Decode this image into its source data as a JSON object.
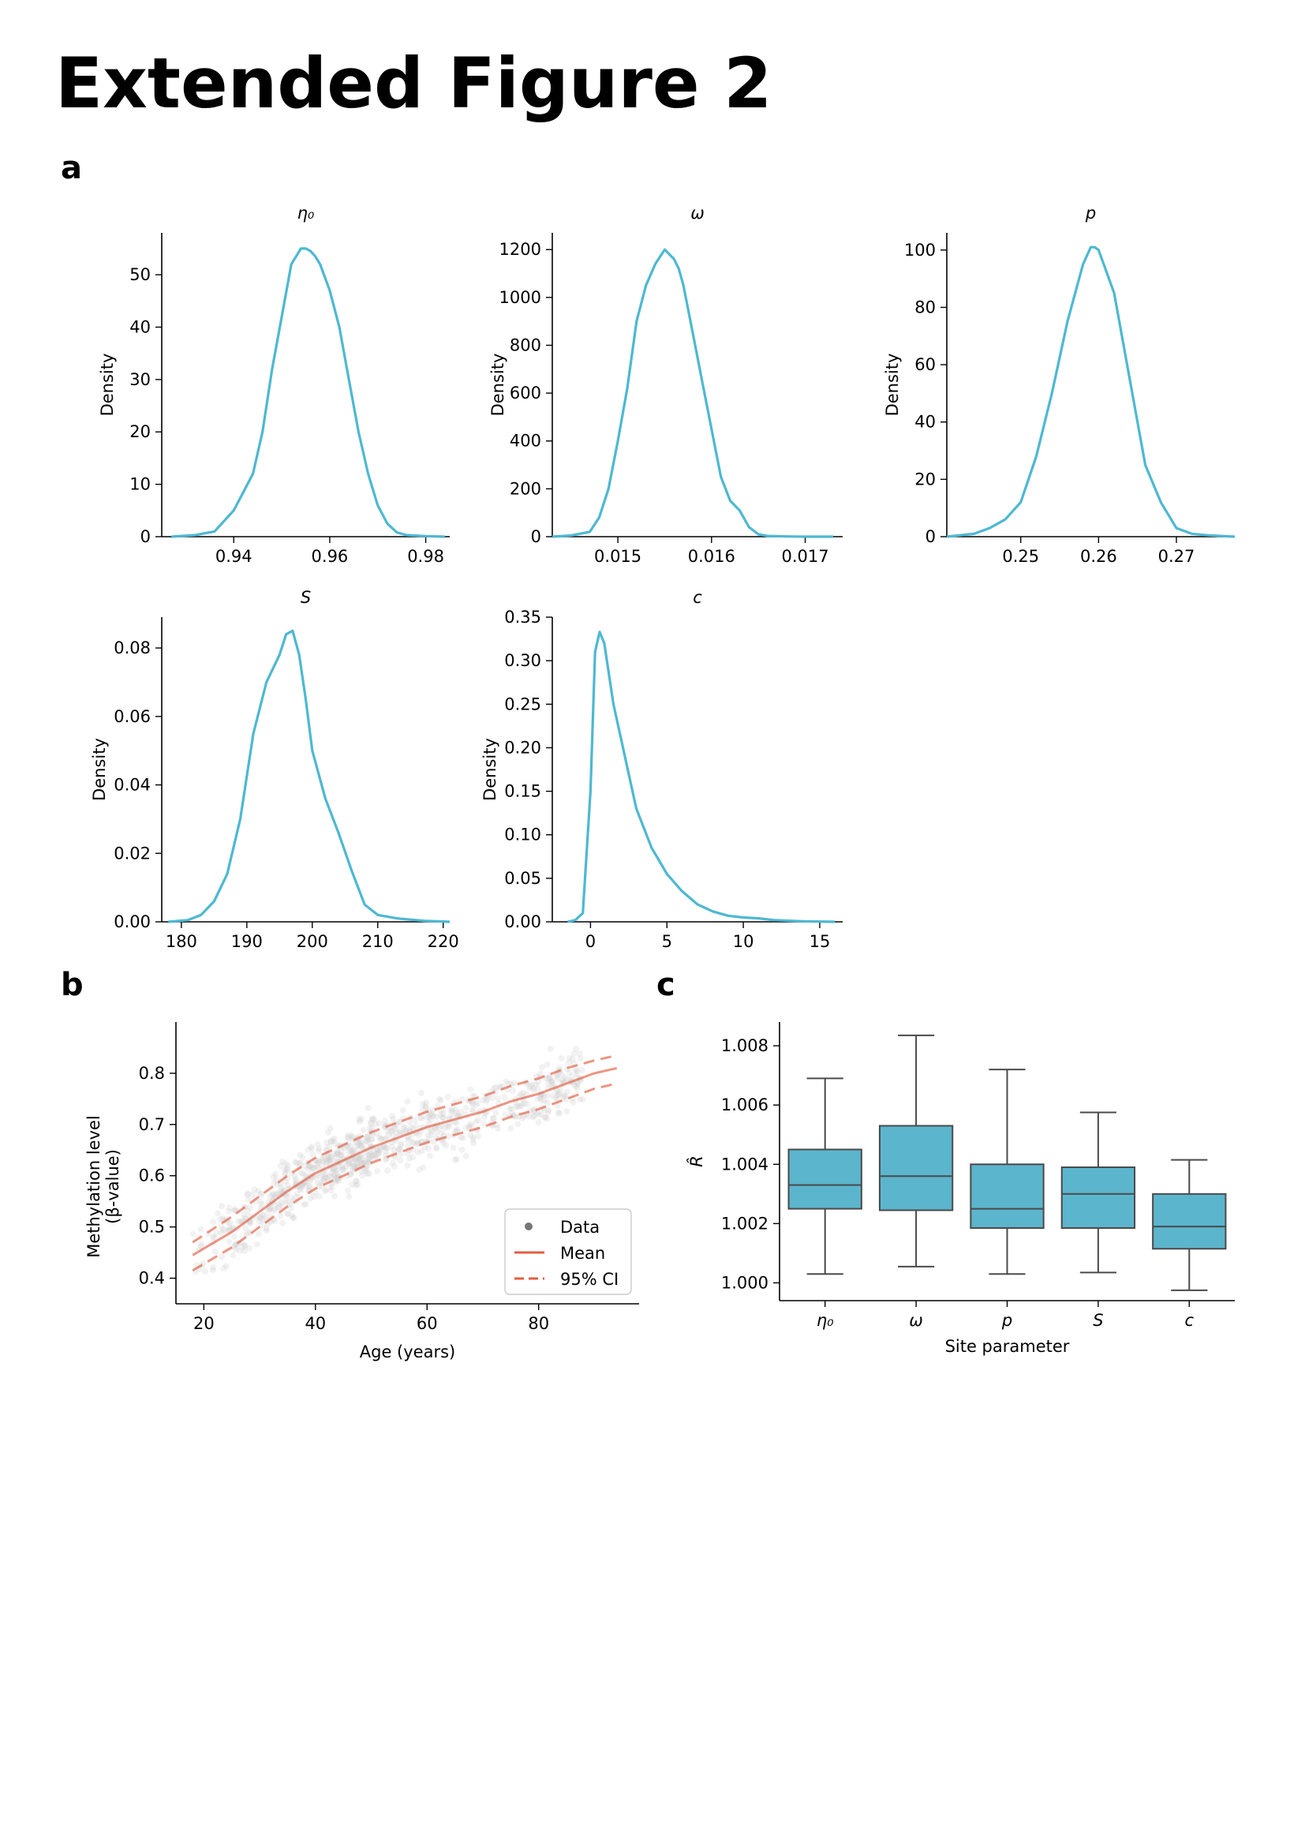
{
  "page": {
    "title": "Extended Figure 2",
    "panel_labels": {
      "a": "a",
      "b": "b",
      "c": "c"
    }
  },
  "colors": {
    "kde_line": "#4DB8D2",
    "box_fill": "#5BB5CC",
    "box_edge": "#4a4a4a",
    "mean_line": "#E45C41",
    "ci_line": "#E45C41",
    "scatter": "#999999"
  },
  "chart_data": [
    {
      "id": "a-eta0",
      "type": "line",
      "title": "η₀",
      "xlabel": "",
      "ylabel": "Density",
      "xlim": [
        0.925,
        0.985
      ],
      "ylim": [
        0,
        58
      ],
      "xticks": [
        0.94,
        0.96,
        0.98
      ],
      "xtick_labels": [
        "0.94",
        "0.96",
        "0.98"
      ],
      "yticks": [
        0,
        10,
        20,
        30,
        40,
        50
      ],
      "ytick_labels": [
        "0",
        "10",
        "20",
        "30",
        "40",
        "50"
      ],
      "x": [
        0.927,
        0.932,
        0.936,
        0.938,
        0.94,
        0.942,
        0.944,
        0.946,
        0.948,
        0.95,
        0.952,
        0.954,
        0.955,
        0.956,
        0.957,
        0.958,
        0.96,
        0.962,
        0.964,
        0.966,
        0.968,
        0.97,
        0.972,
        0.974,
        0.976,
        0.98,
        0.984
      ],
      "y": [
        0,
        0.3,
        1,
        3,
        5,
        8.5,
        12,
        20,
        32,
        42,
        52,
        55,
        55,
        54.5,
        53.5,
        52,
        47,
        40,
        30,
        20,
        12,
        6,
        2.5,
        0.8,
        0.3,
        0.1,
        0
      ]
    },
    {
      "id": "a-omega",
      "type": "line",
      "title": "ω",
      "xlabel": "",
      "ylabel": "Density",
      "xlim": [
        0.0143,
        0.0174
      ],
      "ylim": [
        0,
        1270
      ],
      "xticks": [
        0.015,
        0.016,
        0.017
      ],
      "xtick_labels": [
        "0.015",
        "0.016",
        "0.017"
      ],
      "yticks": [
        0,
        200,
        400,
        600,
        800,
        1000,
        1200
      ],
      "ytick_labels": [
        "0",
        "200",
        "400",
        "600",
        "800",
        "1000",
        "1200"
      ],
      "x": [
        0.0143,
        0.0145,
        0.0147,
        0.0148,
        0.0149,
        0.015,
        0.0151,
        0.0152,
        0.0153,
        0.0154,
        0.0155,
        0.0156,
        0.01565,
        0.0157,
        0.0158,
        0.0159,
        0.016,
        0.0161,
        0.0162,
        0.0163,
        0.0164,
        0.0165,
        0.0166,
        0.0168,
        0.017,
        0.0173
      ],
      "y": [
        0,
        5,
        20,
        80,
        200,
        400,
        620,
        900,
        1050,
        1140,
        1200,
        1160,
        1120,
        1050,
        850,
        650,
        450,
        250,
        150,
        110,
        40,
        10,
        3,
        1,
        0,
        0
      ]
    },
    {
      "id": "a-p",
      "type": "line",
      "title": "p",
      "xlabel": "",
      "ylabel": "Density",
      "xlim": [
        0.2405,
        0.2775
      ],
      "ylim": [
        0,
        106
      ],
      "xticks": [
        0.25,
        0.26,
        0.27
      ],
      "xtick_labels": [
        "0.25",
        "0.26",
        "0.27"
      ],
      "yticks": [
        0,
        20,
        40,
        60,
        80,
        100
      ],
      "ytick_labels": [
        "0",
        "20",
        "40",
        "60",
        "80",
        "100"
      ],
      "x": [
        0.2405,
        0.244,
        0.246,
        0.248,
        0.25,
        0.252,
        0.254,
        0.256,
        0.258,
        0.259,
        0.2595,
        0.26,
        0.262,
        0.264,
        0.266,
        0.268,
        0.27,
        0.272,
        0.274,
        0.2775
      ],
      "y": [
        0,
        1,
        3,
        6,
        12,
        28,
        50,
        75,
        95,
        101,
        101,
        100,
        85,
        55,
        25,
        12,
        3,
        1,
        0.5,
        0
      ]
    },
    {
      "id": "a-S",
      "type": "line",
      "title": "S",
      "xlabel": "",
      "ylabel": "Density",
      "xlim": [
        177,
        221
      ],
      "ylim": [
        0,
        0.089
      ],
      "xticks": [
        180,
        190,
        200,
        210,
        220
      ],
      "xtick_labels": [
        "180",
        "190",
        "200",
        "210",
        "220"
      ],
      "yticks": [
        0.0,
        0.02,
        0.04,
        0.06,
        0.08
      ],
      "ytick_labels": [
        "0.00",
        "0.02",
        "0.04",
        "0.06",
        "0.08"
      ],
      "x": [
        178,
        181,
        183,
        185,
        187,
        189,
        191,
        193,
        195,
        196,
        197,
        198,
        199,
        200,
        202,
        204,
        206,
        208,
        210,
        213,
        217,
        221
      ],
      "y": [
        0,
        0.0005,
        0.002,
        0.006,
        0.014,
        0.03,
        0.055,
        0.07,
        0.078,
        0.084,
        0.085,
        0.078,
        0.065,
        0.05,
        0.036,
        0.026,
        0.015,
        0.005,
        0.002,
        0.001,
        0.0003,
        0
      ]
    },
    {
      "id": "a-c",
      "type": "line",
      "title": "c",
      "xlabel": "",
      "ylabel": "Density",
      "xlim": [
        -2.5,
        16.5
      ],
      "ylim": [
        0,
        0.35
      ],
      "xticks": [
        0,
        5,
        10,
        15
      ],
      "xtick_labels": [
        "0",
        "5",
        "10",
        "15"
      ],
      "yticks": [
        0.0,
        0.05,
        0.1,
        0.15,
        0.2,
        0.25,
        0.3,
        0.35
      ],
      "ytick_labels": [
        "0.00",
        "0.05",
        "0.10",
        "0.15",
        "0.20",
        "0.25",
        "0.30",
        "0.35"
      ],
      "x": [
        -1.5,
        -1.0,
        -0.5,
        0,
        0.3,
        0.6,
        0.9,
        1.5,
        2.0,
        2.5,
        3.0,
        4.0,
        5.0,
        6.0,
        7.0,
        8.0,
        9.0,
        10.0,
        11.0,
        12.0,
        14.0,
        16.0
      ],
      "y": [
        0,
        0.002,
        0.01,
        0.15,
        0.31,
        0.333,
        0.32,
        0.25,
        0.21,
        0.17,
        0.13,
        0.085,
        0.055,
        0.035,
        0.02,
        0.012,
        0.007,
        0.005,
        0.004,
        0.002,
        0.0005,
        0
      ]
    },
    {
      "id": "b",
      "type": "scatter",
      "title": "",
      "xlabel": "Age (years)",
      "ylabel": [
        "Methylation level",
        "(β-value)"
      ],
      "xlim": [
        15,
        98
      ],
      "ylim": [
        0.35,
        0.9
      ],
      "xticks": [
        20,
        40,
        60,
        80
      ],
      "xtick_labels": [
        "20",
        "40",
        "60",
        "80"
      ],
      "yticks": [
        0.4,
        0.5,
        0.6,
        0.7,
        0.8
      ],
      "ytick_labels": [
        "0.4",
        "0.5",
        "0.6",
        "0.7",
        "0.8"
      ],
      "scatter_note": "dense semi-transparent gray points following the mean curve",
      "series": [
        {
          "name": "Mean",
          "style": "solid",
          "x": [
            18,
            25,
            30,
            35,
            40,
            45,
            50,
            55,
            60,
            65,
            70,
            75,
            80,
            85,
            90,
            94
          ],
          "y": [
            0.445,
            0.49,
            0.53,
            0.57,
            0.605,
            0.63,
            0.655,
            0.675,
            0.695,
            0.71,
            0.725,
            0.745,
            0.76,
            0.78,
            0.8,
            0.81
          ]
        },
        {
          "name": "95% CI",
          "style": "dashed",
          "bound": "upper",
          "x": [
            18,
            25,
            30,
            35,
            40,
            45,
            50,
            55,
            60,
            65,
            70,
            75,
            80,
            85,
            90,
            94
          ],
          "y": [
            0.47,
            0.52,
            0.56,
            0.6,
            0.635,
            0.66,
            0.685,
            0.705,
            0.725,
            0.74,
            0.755,
            0.775,
            0.79,
            0.81,
            0.825,
            0.835
          ]
        },
        {
          "name": "95% CI",
          "style": "dashed",
          "bound": "lower",
          "x": [
            18,
            25,
            30,
            35,
            40,
            45,
            50,
            55,
            60,
            65,
            70,
            75,
            80,
            85,
            90,
            94
          ],
          "y": [
            0.415,
            0.46,
            0.5,
            0.54,
            0.575,
            0.6,
            0.625,
            0.645,
            0.665,
            0.68,
            0.695,
            0.715,
            0.73,
            0.75,
            0.77,
            0.78
          ]
        }
      ],
      "legend": {
        "placement": "lower-right",
        "entries": [
          "Data",
          "Mean",
          "95% CI"
        ]
      }
    },
    {
      "id": "c",
      "type": "box",
      "title": "",
      "xlabel": "Site parameter",
      "ylabel": "R̂",
      "ylim": [
        0.9994,
        1.0088
      ],
      "yticks": [
        1.0,
        1.002,
        1.004,
        1.006,
        1.008
      ],
      "ytick_labels": [
        "1.000",
        "1.002",
        "1.004",
        "1.006",
        "1.008"
      ],
      "categories": [
        "η₀",
        "ω",
        "p",
        "S",
        "c"
      ],
      "boxes": [
        {
          "whislo": 1.0003,
          "q1": 1.0025,
          "med": 1.0033,
          "q3": 1.0045,
          "whishi": 1.0069
        },
        {
          "whislo": 1.00055,
          "q1": 1.00245,
          "med": 1.0036,
          "q3": 1.0053,
          "whishi": 1.00835
        },
        {
          "whislo": 1.0003,
          "q1": 1.00185,
          "med": 1.0025,
          "q3": 1.004,
          "whishi": 1.0072
        },
        {
          "whislo": 1.00035,
          "q1": 1.00185,
          "med": 1.003,
          "q3": 1.0039,
          "whishi": 1.00575
        },
        {
          "whislo": 0.99975,
          "q1": 1.00115,
          "med": 1.0019,
          "q3": 1.003,
          "whishi": 1.00415
        }
      ]
    }
  ]
}
